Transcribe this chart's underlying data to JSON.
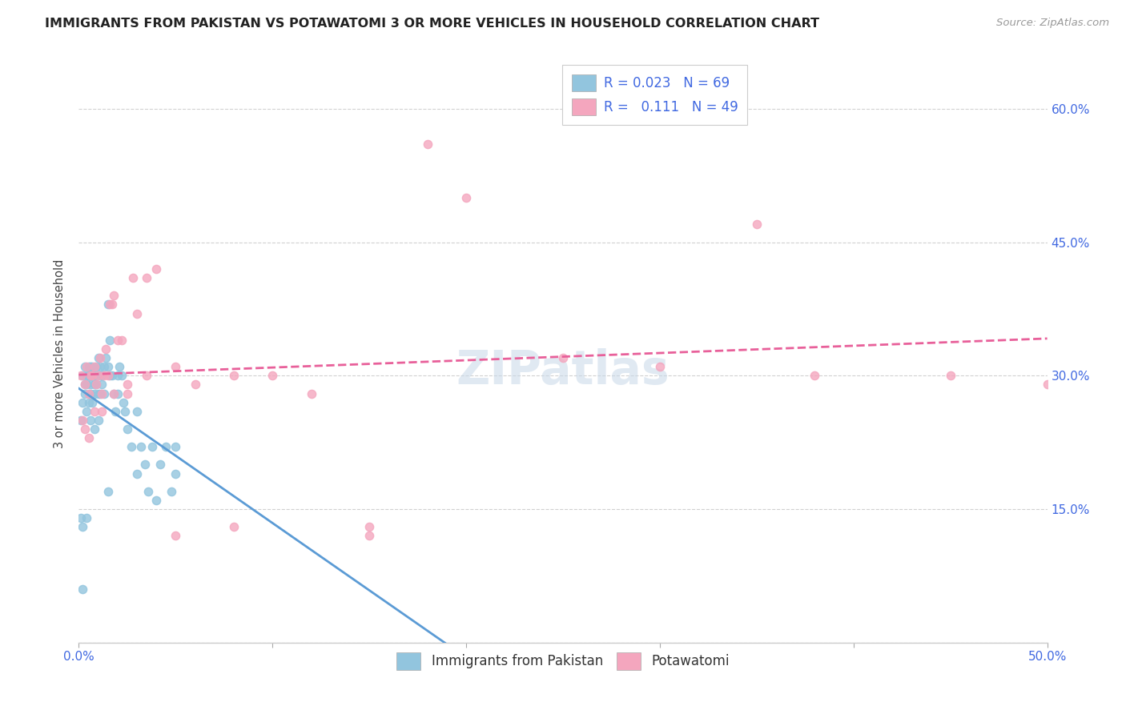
{
  "title": "IMMIGRANTS FROM PAKISTAN VS POTAWATOMI 3 OR MORE VEHICLES IN HOUSEHOLD CORRELATION CHART",
  "source": "Source: ZipAtlas.com",
  "ylabel": "3 or more Vehicles in Household",
  "xmin": 0.0,
  "xmax": 0.5,
  "ymin": 0.0,
  "ymax": 0.65,
  "blue_color": "#92c5de",
  "pink_color": "#f4a6be",
  "line_blue_color": "#5b9bd5",
  "line_pink_color": "#e8609a",
  "title_color": "#222222",
  "source_color": "#999999",
  "legend_r_color": "#4169E1",
  "tick_color": "#4169E1",
  "watermark": "ZIPatlas",
  "pakistan_x": [
    0.001,
    0.001,
    0.002,
    0.002,
    0.002,
    0.003,
    0.003,
    0.003,
    0.004,
    0.004,
    0.004,
    0.005,
    0.005,
    0.005,
    0.006,
    0.006,
    0.006,
    0.006,
    0.007,
    0.007,
    0.007,
    0.008,
    0.008,
    0.008,
    0.009,
    0.009,
    0.01,
    0.01,
    0.01,
    0.011,
    0.011,
    0.012,
    0.012,
    0.013,
    0.013,
    0.014,
    0.015,
    0.015,
    0.016,
    0.016,
    0.017,
    0.018,
    0.019,
    0.02,
    0.021,
    0.022,
    0.023,
    0.024,
    0.025,
    0.027,
    0.03,
    0.032,
    0.034,
    0.036,
    0.038,
    0.04,
    0.042,
    0.045,
    0.048,
    0.05,
    0.002,
    0.004,
    0.006,
    0.008,
    0.01,
    0.015,
    0.02,
    0.03,
    0.05
  ],
  "pakistan_y": [
    0.14,
    0.25,
    0.13,
    0.27,
    0.3,
    0.28,
    0.31,
    0.29,
    0.3,
    0.26,
    0.29,
    0.3,
    0.27,
    0.31,
    0.28,
    0.3,
    0.29,
    0.31,
    0.3,
    0.27,
    0.31,
    0.29,
    0.3,
    0.28,
    0.31,
    0.29,
    0.32,
    0.28,
    0.3,
    0.31,
    0.28,
    0.29,
    0.3,
    0.28,
    0.31,
    0.32,
    0.31,
    0.38,
    0.34,
    0.3,
    0.3,
    0.28,
    0.26,
    0.3,
    0.31,
    0.3,
    0.27,
    0.26,
    0.24,
    0.22,
    0.19,
    0.22,
    0.2,
    0.17,
    0.22,
    0.16,
    0.2,
    0.22,
    0.17,
    0.19,
    0.06,
    0.14,
    0.25,
    0.24,
    0.25,
    0.17,
    0.28,
    0.26,
    0.22
  ],
  "potawatomi_x": [
    0.001,
    0.002,
    0.003,
    0.004,
    0.005,
    0.006,
    0.007,
    0.008,
    0.009,
    0.01,
    0.011,
    0.012,
    0.013,
    0.014,
    0.015,
    0.016,
    0.017,
    0.018,
    0.02,
    0.022,
    0.025,
    0.028,
    0.03,
    0.035,
    0.04,
    0.05,
    0.06,
    0.08,
    0.1,
    0.12,
    0.15,
    0.18,
    0.2,
    0.25,
    0.3,
    0.35,
    0.38,
    0.45,
    0.5,
    0.003,
    0.005,
    0.008,
    0.012,
    0.018,
    0.025,
    0.035,
    0.05,
    0.08,
    0.15
  ],
  "potawatomi_y": [
    0.3,
    0.25,
    0.29,
    0.31,
    0.28,
    0.3,
    0.3,
    0.31,
    0.29,
    0.3,
    0.32,
    0.28,
    0.3,
    0.33,
    0.3,
    0.38,
    0.38,
    0.39,
    0.34,
    0.34,
    0.28,
    0.41,
    0.37,
    0.41,
    0.42,
    0.31,
    0.29,
    0.3,
    0.3,
    0.28,
    0.13,
    0.56,
    0.5,
    0.32,
    0.31,
    0.47,
    0.3,
    0.3,
    0.29,
    0.24,
    0.23,
    0.26,
    0.26,
    0.28,
    0.29,
    0.3,
    0.12,
    0.13,
    0.12
  ]
}
